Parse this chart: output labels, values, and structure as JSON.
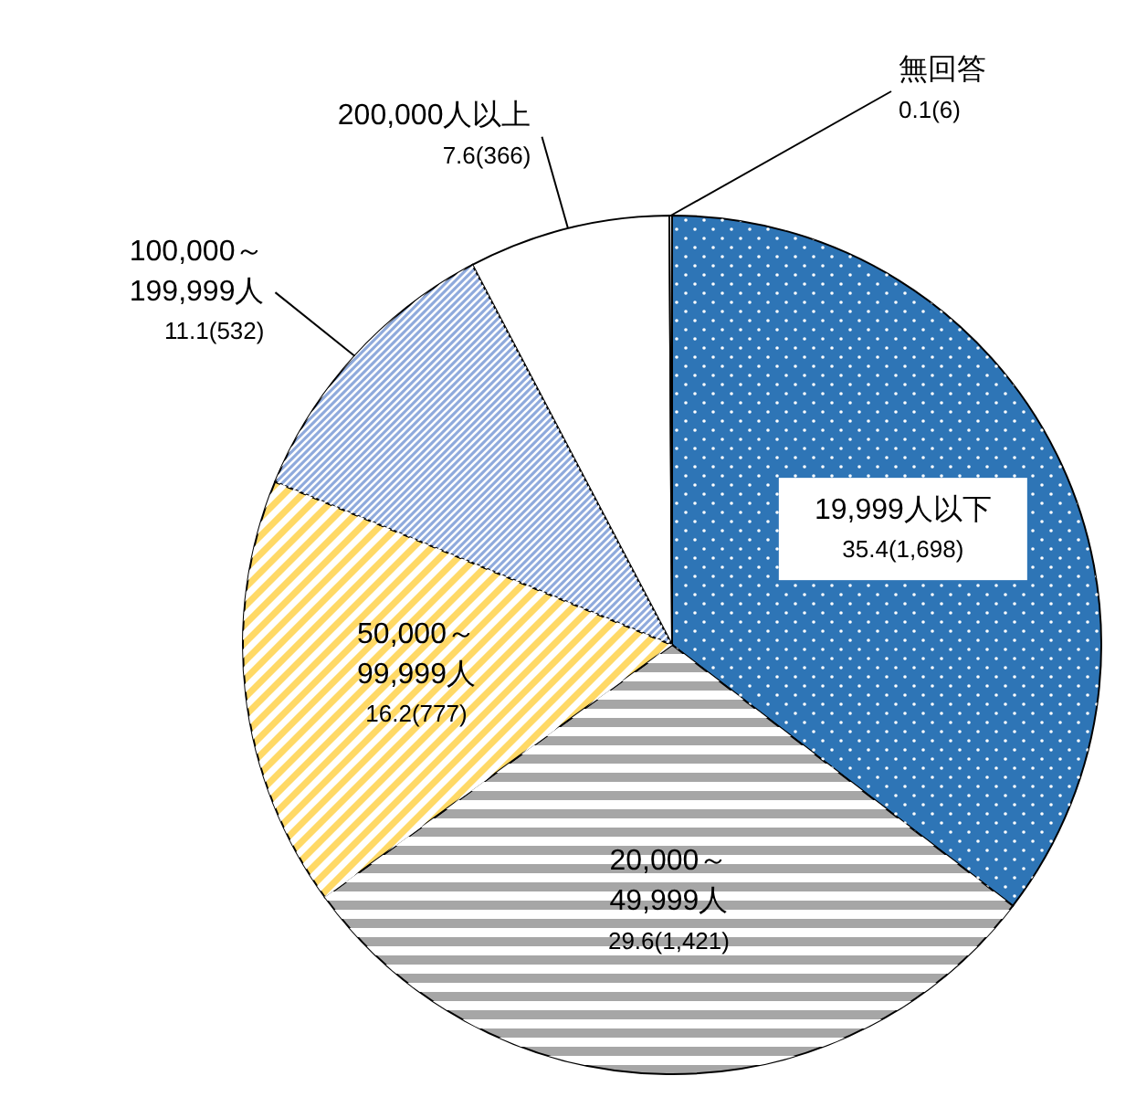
{
  "chart_data": {
    "type": "pie",
    "categories": [
      "19,999人以下",
      "20,000～49,999人",
      "50,000～99,999人",
      "100,000～199,999人",
      "200,000人以上",
      "無回答"
    ],
    "values": [
      35.4,
      29.6,
      16.2,
      11.1,
      7.6,
      0.1
    ],
    "value_labels": [
      "35.4(1,698)",
      "29.6(1,421)",
      "16.2(777)",
      "11.1(532)",
      "7.6(366)",
      "0.1(6)"
    ],
    "colors": [
      "#2e75b6",
      "#a6a6a6",
      "#ffd966",
      "#8faadc",
      "#ffffff",
      "#ffffff"
    ]
  }
}
